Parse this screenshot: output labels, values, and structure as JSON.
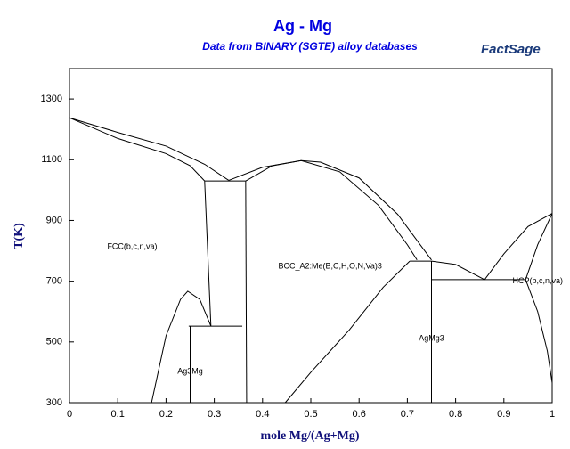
{
  "chart_data": {
    "type": "line",
    "title": "Ag - Mg",
    "subtitle": "Data from BINARY (SGTE) alloy databases",
    "logo": "FactSage",
    "xlabel": "mole Mg/(Ag+Mg)",
    "ylabel": "T(K)",
    "xlim": [
      0,
      1
    ],
    "xticks": [
      0,
      0.1,
      0.2,
      0.3,
      0.4,
      0.5,
      0.6,
      0.7,
      0.8,
      0.9,
      1
    ],
    "ylim": [
      300,
      1400
    ],
    "yticks": [
      300,
      500,
      700,
      900,
      1100,
      1300
    ],
    "color": "#000000",
    "series": [
      {
        "x": [
          0,
          0.1,
          0.2,
          0.28,
          0.33
        ],
        "values": [
          1238,
          1190,
          1145,
          1085,
          1032
        ]
      },
      {
        "x": [
          0,
          0.1,
          0.2,
          0.25,
          0.28
        ],
        "values": [
          1238,
          1170,
          1120,
          1080,
          1030
        ]
      },
      {
        "x": [
          0.33,
          0.4,
          0.48,
          0.52,
          0.6,
          0.68,
          0.75
        ],
        "values": [
          1032,
          1075,
          1097,
          1092,
          1040,
          920,
          770
        ]
      },
      {
        "x": [
          0.365,
          0.42,
          0.48,
          0.56,
          0.64,
          0.7,
          0.72
        ],
        "values": [
          1030,
          1080,
          1097,
          1060,
          950,
          820,
          770
        ]
      },
      {
        "x": [
          0.28,
          0.365
        ],
        "values": [
          1030,
          1030
        ]
      },
      {
        "x": [
          0.28,
          0.293
        ],
        "values": [
          1030,
          552
        ]
      },
      {
        "x": [
          0.365,
          0.367
        ],
        "values": [
          1030,
          300
        ]
      },
      {
        "x": [
          0.247,
          0.358
        ],
        "values": [
          552,
          552
        ]
      },
      {
        "x": [
          0.25,
          0.25
        ],
        "values": [
          552,
          300
        ]
      },
      {
        "x": [
          0.17,
          0.2,
          0.23,
          0.245,
          0.27,
          0.293
        ],
        "values": [
          300,
          520,
          640,
          667,
          640,
          552
        ]
      },
      {
        "x": [
          0.447,
          0.5,
          0.58,
          0.65,
          0.705
        ],
        "values": [
          300,
          400,
          540,
          680,
          766
        ]
      },
      {
        "x": [
          0.705,
          0.75
        ],
        "values": [
          766,
          766
        ]
      },
      {
        "x": [
          0.75,
          0.75
        ],
        "values": [
          766,
          300
        ]
      },
      {
        "x": [
          0.75,
          0.8,
          0.86
        ],
        "values": [
          766,
          755,
          705
        ]
      },
      {
        "x": [
          0.75,
          0.945
        ],
        "values": [
          705,
          705
        ]
      },
      {
        "x": [
          0.86,
          0.9,
          0.95,
          1
        ],
        "values": [
          705,
          790,
          880,
          923
        ]
      },
      {
        "x": [
          0.945,
          0.97,
          1
        ],
        "values": [
          705,
          820,
          923
        ]
      },
      {
        "x": [
          0.945,
          0.97,
          0.99,
          1
        ],
        "values": [
          705,
          600,
          470,
          365
        ]
      }
    ],
    "annotations": [
      {
        "text": "FCC(b,c,n,va)",
        "x": 0.13,
        "y": 813
      },
      {
        "text": "BCC_A2:Me(B,C,H,O,N,Va)3",
        "x": 0.54,
        "y": 749
      },
      {
        "text": "HCP(b,c,n,va)",
        "x": 0.97,
        "y": 700
      },
      {
        "text": "AgMg3",
        "x": 0.75,
        "y": 511
      },
      {
        "text": "Ag3Mg",
        "x": 0.25,
        "y": 403
      }
    ]
  }
}
